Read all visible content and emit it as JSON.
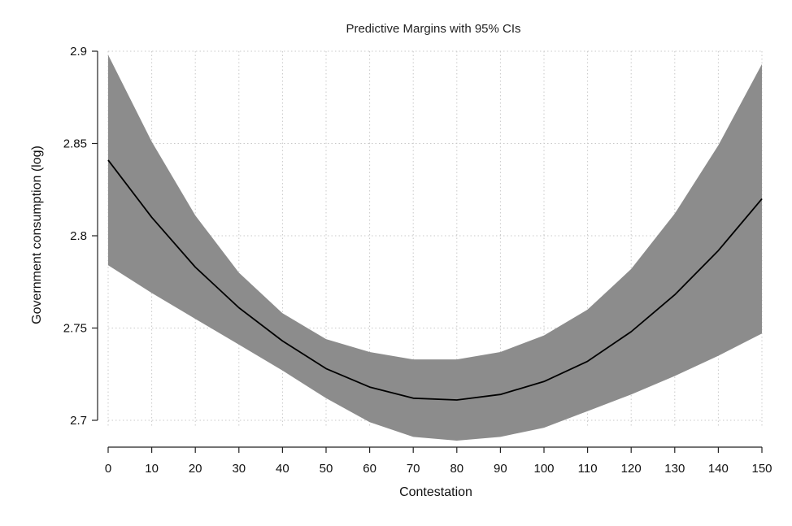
{
  "chart_data": {
    "type": "area",
    "title": "Predictive Margins with 95% CIs",
    "xlabel": "Contestation",
    "ylabel": "Government consumption (log)",
    "xlim": [
      0,
      150
    ],
    "ylim": [
      2.7,
      2.9
    ],
    "x_ticks": [
      0,
      10,
      20,
      30,
      40,
      50,
      60,
      70,
      80,
      90,
      100,
      110,
      120,
      130,
      140,
      150
    ],
    "x_tick_labels": [
      "0",
      "10",
      "20",
      "30",
      "40",
      "50",
      "60",
      "70",
      "80",
      "90",
      "100",
      "110",
      "120",
      "130",
      "140",
      "150"
    ],
    "y_ticks": [
      2.7,
      2.75,
      2.8,
      2.85,
      2.9
    ],
    "y_tick_labels": [
      "2.7",
      "2.75",
      "2.8",
      "2.85",
      "2.9"
    ],
    "grid": true,
    "x": [
      0,
      10,
      20,
      30,
      40,
      50,
      60,
      70,
      80,
      90,
      100,
      110,
      120,
      130,
      140,
      150
    ],
    "series": [
      {
        "values": [
          2.841,
          2.81,
          2.783,
          2.761,
          2.743,
          2.728,
          2.718,
          2.712,
          2.711,
          2.714,
          2.721,
          2.732,
          2.748,
          2.768,
          2.792,
          2.82
        ]
      }
    ],
    "ci_lower": [
      2.784,
      2.769,
      2.755,
      2.741,
      2.727,
      2.712,
      2.699,
      2.691,
      2.689,
      2.691,
      2.696,
      2.705,
      2.714,
      2.724,
      2.735,
      2.747
    ],
    "ci_upper": [
      2.898,
      2.851,
      2.811,
      2.78,
      2.758,
      2.744,
      2.737,
      2.733,
      2.733,
      2.737,
      2.746,
      2.76,
      2.782,
      2.812,
      2.849,
      2.893
    ],
    "colors": {
      "band": "#8c8c8c",
      "line": "#000000"
    }
  }
}
